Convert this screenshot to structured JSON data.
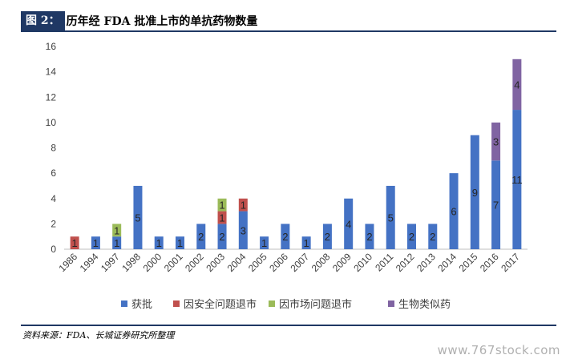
{
  "figure": {
    "number": "图 2：",
    "title": "历年经 FDA 批准上市的单抗药物数量",
    "source": "资料来源：FDA、长城证券研究所整理",
    "watermark": "www.767stock.com"
  },
  "colors": {
    "approved": "#4472c4",
    "safety": "#c0504d",
    "market": "#9bbb59",
    "biosimilar": "#8064a2",
    "header": "#1f3864"
  },
  "chart_data": {
    "type": "bar",
    "stacked": true,
    "categories": [
      "1986",
      "1994",
      "1997",
      "1998",
      "2000",
      "2001",
      "2002",
      "2003",
      "2004",
      "2005",
      "2006",
      "2007",
      "2008",
      "2009",
      "2010",
      "2011",
      "2012",
      "2013",
      "2014",
      "2015",
      "2016",
      "2017"
    ],
    "series": [
      {
        "name": "获批",
        "color": "#4472c4",
        "values": [
          0,
          1,
          1,
          5,
          1,
          1,
          2,
          2,
          3,
          1,
          2,
          1,
          2,
          4,
          2,
          5,
          2,
          2,
          6,
          9,
          7,
          11
        ]
      },
      {
        "name": "因安全问题退市",
        "color": "#c0504d",
        "values": [
          1,
          0,
          0,
          0,
          0,
          0,
          0,
          1,
          1,
          0,
          0,
          0,
          0,
          0,
          0,
          0,
          0,
          0,
          0,
          0,
          0,
          0
        ]
      },
      {
        "name": "因市场问题退市",
        "color": "#9bbb59",
        "values": [
          0,
          0,
          1,
          0,
          0,
          0,
          0,
          1,
          0,
          0,
          0,
          0,
          0,
          0,
          0,
          0,
          0,
          0,
          0,
          0,
          0,
          0
        ]
      },
      {
        "name": "生物类似药",
        "color": "#8064a2",
        "values": [
          0,
          0,
          0,
          0,
          0,
          0,
          0,
          0,
          0,
          0,
          0,
          0,
          0,
          0,
          0,
          0,
          0,
          0,
          0,
          0,
          3,
          4
        ]
      }
    ],
    "yticks": [
      "0",
      "2",
      "4",
      "6",
      "8",
      "10",
      "12",
      "14",
      "16"
    ],
    "ylim": [
      0,
      16
    ],
    "grid": false,
    "legend": "bottom"
  }
}
